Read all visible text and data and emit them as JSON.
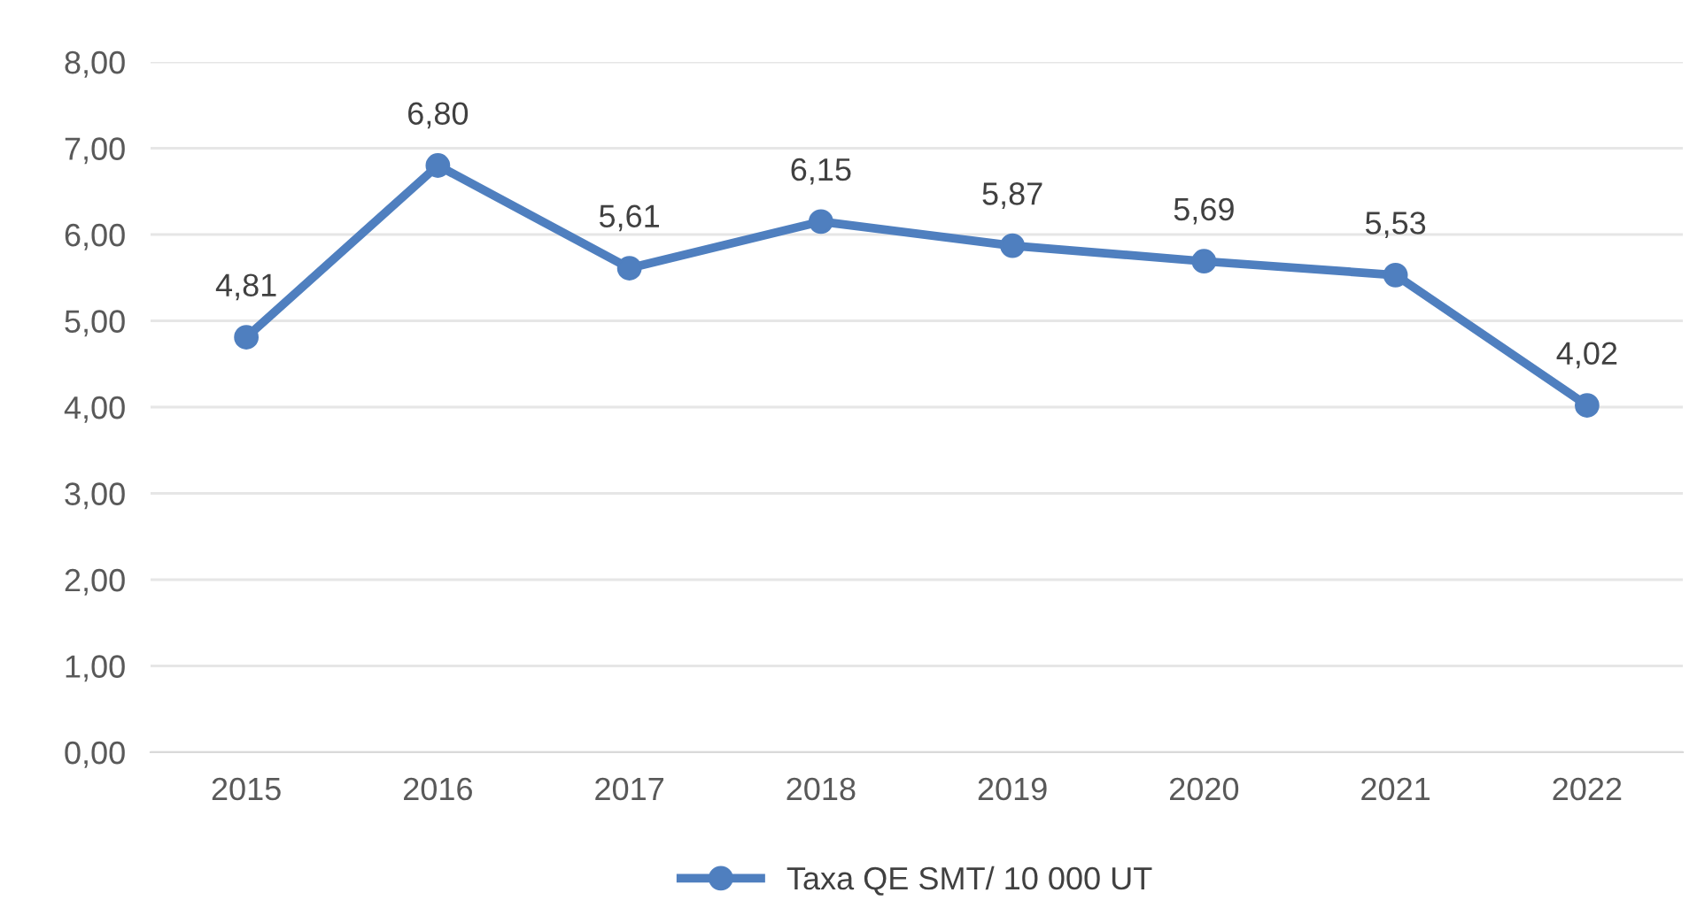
{
  "chart_data": {
    "type": "line",
    "categories": [
      "2015",
      "2016",
      "2017",
      "2018",
      "2019",
      "2020",
      "2021",
      "2022"
    ],
    "series": [
      {
        "name": "Taxa QE SMT/ 10 000 UT",
        "color": "#4f7fbf",
        "values": [
          4.81,
          6.8,
          5.61,
          6.15,
          5.87,
          5.69,
          5.53,
          4.02
        ],
        "value_labels": [
          "4,81",
          "6,80",
          "5,61",
          "6,15",
          "5,87",
          "5,69",
          "5,53",
          "4,02"
        ]
      }
    ],
    "ylim": [
      0,
      8
    ],
    "yticks": [
      {
        "value": 0,
        "label": "0,00"
      },
      {
        "value": 1,
        "label": "1,00"
      },
      {
        "value": 2,
        "label": "2,00"
      },
      {
        "value": 3,
        "label": "3,00"
      },
      {
        "value": 4,
        "label": "4,00"
      },
      {
        "value": 5,
        "label": "5,00"
      },
      {
        "value": 6,
        "label": "6,00"
      },
      {
        "value": 7,
        "label": "7,00"
      },
      {
        "value": 8,
        "label": "8,00"
      }
    ],
    "grid": "y",
    "legend": "bottom",
    "marker": "circle",
    "line_style": "solid"
  }
}
